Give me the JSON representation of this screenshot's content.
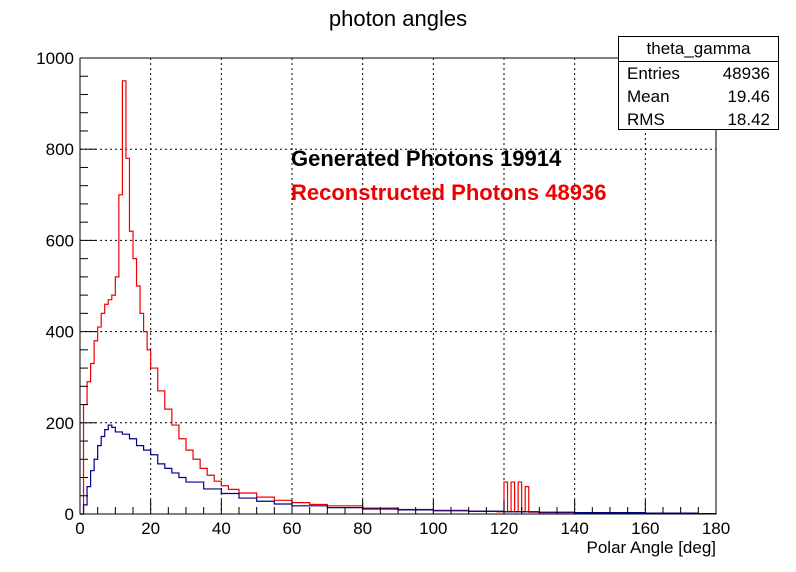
{
  "chart_data": {
    "type": "histogram",
    "title": "photon angles",
    "xlabel": "Polar Angle [deg]",
    "ylabel": "",
    "xlim": [
      0,
      180
    ],
    "ylim": [
      0,
      1000
    ],
    "xticks": [
      0,
      20,
      40,
      60,
      80,
      100,
      120,
      140,
      160,
      180
    ],
    "yticks": [
      0,
      200,
      400,
      600,
      800,
      1000
    ],
    "grid": true,
    "stats": {
      "name": "theta_gamma",
      "rows": [
        {
          "label": "Entries",
          "value": "48936"
        },
        {
          "label": "Mean",
          "value": "19.46"
        },
        {
          "label": "RMS",
          "value": "18.42"
        }
      ]
    },
    "annotations": [
      {
        "text": "Generated Photons 19914",
        "color": "#000000"
      },
      {
        "text": "Reconstructed Photons 48936",
        "color": "#ee0000"
      }
    ],
    "series": [
      {
        "color": "#ee0000",
        "points": [
          [
            0,
            0
          ],
          [
            1,
            240
          ],
          [
            2,
            290
          ],
          [
            3,
            330
          ],
          [
            4,
            380
          ],
          [
            5,
            410
          ],
          [
            6,
            440
          ],
          [
            7,
            460
          ],
          [
            8,
            470
          ],
          [
            9,
            480
          ],
          [
            10,
            520
          ],
          [
            11,
            700
          ],
          [
            12,
            950
          ],
          [
            13,
            780
          ],
          [
            14,
            620
          ],
          [
            15,
            560
          ],
          [
            16,
            500
          ],
          [
            17,
            440
          ],
          [
            18,
            400
          ],
          [
            19,
            360
          ],
          [
            20,
            320
          ],
          [
            22,
            270
          ],
          [
            24,
            230
          ],
          [
            26,
            195
          ],
          [
            28,
            165
          ],
          [
            30,
            140
          ],
          [
            32,
            120
          ],
          [
            34,
            100
          ],
          [
            36,
            85
          ],
          [
            38,
            72
          ],
          [
            40,
            62
          ],
          [
            42,
            54
          ],
          [
            45,
            46
          ],
          [
            50,
            37
          ],
          [
            55,
            30
          ],
          [
            60,
            25
          ],
          [
            65,
            21
          ],
          [
            70,
            18
          ],
          [
            80,
            13
          ],
          [
            90,
            10
          ],
          [
            100,
            8
          ],
          [
            110,
            6
          ],
          [
            118,
            5
          ],
          [
            120,
            70
          ],
          [
            121,
            5
          ],
          [
            122,
            70
          ],
          [
            123,
            5
          ],
          [
            124,
            70
          ],
          [
            125,
            5
          ],
          [
            126,
            60
          ],
          [
            127,
            4
          ],
          [
            130,
            3
          ],
          [
            140,
            2
          ],
          [
            150,
            2
          ],
          [
            160,
            1
          ],
          [
            170,
            1
          ],
          [
            180,
            0
          ]
        ]
      },
      {
        "color": "#00008b",
        "points": [
          [
            0,
            0
          ],
          [
            1,
            20
          ],
          [
            2,
            60
          ],
          [
            3,
            95
          ],
          [
            4,
            120
          ],
          [
            5,
            150
          ],
          [
            6,
            170
          ],
          [
            7,
            185
          ],
          [
            8,
            195
          ],
          [
            9,
            190
          ],
          [
            10,
            180
          ],
          [
            12,
            175
          ],
          [
            14,
            165
          ],
          [
            16,
            150
          ],
          [
            18,
            140
          ],
          [
            20,
            130
          ],
          [
            22,
            110
          ],
          [
            24,
            100
          ],
          [
            26,
            90
          ],
          [
            28,
            80
          ],
          [
            30,
            70
          ],
          [
            35,
            55
          ],
          [
            40,
            45
          ],
          [
            45,
            35
          ],
          [
            50,
            28
          ],
          [
            55,
            22
          ],
          [
            60,
            18
          ],
          [
            70,
            14
          ],
          [
            80,
            11
          ],
          [
            90,
            9
          ],
          [
            100,
            7
          ],
          [
            110,
            6
          ],
          [
            120,
            5
          ],
          [
            130,
            4
          ],
          [
            140,
            3
          ],
          [
            150,
            3
          ],
          [
            160,
            2
          ],
          [
            170,
            2
          ],
          [
            175,
            1
          ],
          [
            180,
            0
          ]
        ]
      }
    ]
  }
}
